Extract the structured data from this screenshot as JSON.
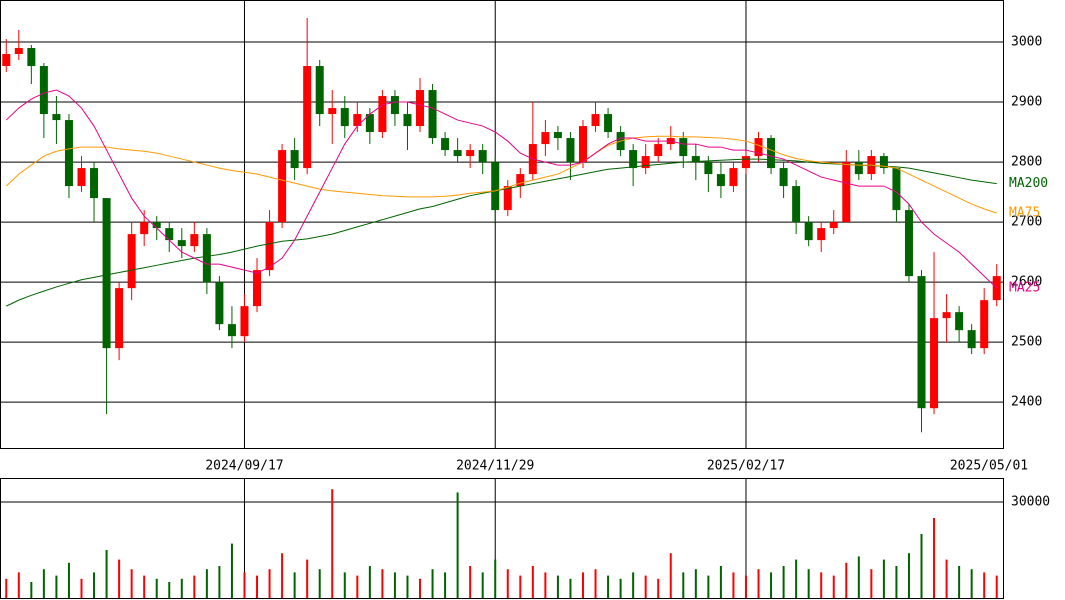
{
  "chart_data": [
    {
      "type": "candlestick",
      "categories": [
        null,
        null,
        null,
        null,
        null,
        null,
        null,
        null,
        null,
        null,
        null,
        null,
        null,
        null,
        null,
        null,
        null,
        null,
        null,
        "2024/09/17",
        null,
        null,
        null,
        null,
        null,
        null,
        null,
        null,
        null,
        null,
        null,
        null,
        null,
        null,
        null,
        null,
        null,
        null,
        null,
        "2024/11/29",
        null,
        null,
        null,
        null,
        null,
        null,
        null,
        null,
        null,
        null,
        null,
        null,
        null,
        null,
        null,
        null,
        null,
        null,
        null,
        "2025/02/17",
        null,
        null,
        null,
        null,
        null,
        null,
        null,
        null,
        null,
        null,
        null,
        null,
        null,
        null,
        null,
        null,
        null,
        null,
        null,
        "2025/05/01"
      ],
      "open": [
        2960,
        2980,
        2990,
        2960,
        2880,
        2870,
        2760,
        2790,
        2740,
        2490,
        2590,
        2680,
        2700,
        2690,
        2670,
        2660,
        2680,
        2600,
        2530,
        2510,
        2560,
        2620,
        2700,
        2820,
        2790,
        2960,
        2880,
        2890,
        2860,
        2880,
        2850,
        2910,
        2880,
        2860,
        2920,
        2840,
        2820,
        2810,
        2820,
        2800,
        2720,
        2760,
        2780,
        2830,
        2850,
        2840,
        2800,
        2860,
        2880,
        2850,
        2820,
        2790,
        2810,
        2830,
        2840,
        2810,
        2800,
        2780,
        2760,
        2790,
        2810,
        2840,
        2790,
        2760,
        2700,
        2670,
        2690,
        2700,
        2800,
        2780,
        2810,
        2790,
        2720,
        2610,
        2390,
        2540,
        2550,
        2520,
        2490,
        2570
      ],
      "high": [
        3005,
        3020,
        2995,
        2965,
        2910,
        2880,
        2810,
        2800,
        2740,
        2600,
        2700,
        2720,
        2710,
        2700,
        2690,
        2700,
        2690,
        2610,
        2560,
        2580,
        2640,
        2720,
        2830,
        2840,
        3040,
        2970,
        2920,
        2910,
        2900,
        2890,
        2920,
        2920,
        2900,
        2940,
        2930,
        2850,
        2840,
        2830,
        2830,
        2810,
        2770,
        2790,
        2900,
        2870,
        2860,
        2850,
        2870,
        2900,
        2890,
        2860,
        2830,
        2830,
        2840,
        2860,
        2850,
        2830,
        2810,
        2800,
        2800,
        2820,
        2850,
        2845,
        2800,
        2770,
        2710,
        2700,
        2720,
        2820,
        2820,
        2820,
        2815,
        2790,
        2730,
        2620,
        2650,
        2580,
        2560,
        2530,
        2590,
        2630
      ],
      "low": [
        2950,
        2970,
        2930,
        2840,
        2830,
        2740,
        2750,
        2700,
        2380,
        2470,
        2570,
        2660,
        2670,
        2650,
        2640,
        2650,
        2580,
        2520,
        2490,
        2500,
        2550,
        2610,
        2690,
        2770,
        2780,
        2860,
        2830,
        2840,
        2850,
        2830,
        2840,
        2860,
        2820,
        2850,
        2830,
        2810,
        2800,
        2790,
        2780,
        2700,
        2710,
        2740,
        2770,
        2810,
        2820,
        2770,
        2790,
        2850,
        2840,
        2810,
        2760,
        2780,
        2800,
        2820,
        2790,
        2770,
        2750,
        2740,
        2750,
        2780,
        2800,
        2780,
        2740,
        2680,
        2660,
        2650,
        2680,
        2700,
        2770,
        2770,
        2780,
        2700,
        2600,
        2350,
        2380,
        2500,
        2500,
        2480,
        2480,
        2560
      ],
      "close": [
        2980,
        2990,
        2960,
        2880,
        2870,
        2760,
        2790,
        2740,
        2490,
        2590,
        2680,
        2700,
        2690,
        2670,
        2660,
        2680,
        2600,
        2530,
        2510,
        2560,
        2620,
        2700,
        2820,
        2790,
        2960,
        2880,
        2890,
        2860,
        2880,
        2850,
        2910,
        2880,
        2860,
        2920,
        2840,
        2820,
        2810,
        2820,
        2800,
        2720,
        2760,
        2780,
        2830,
        2850,
        2840,
        2800,
        2860,
        2880,
        2850,
        2820,
        2790,
        2810,
        2830,
        2840,
        2810,
        2800,
        2780,
        2760,
        2790,
        2810,
        2840,
        2790,
        2760,
        2700,
        2670,
        2690,
        2700,
        2800,
        2780,
        2810,
        2790,
        2720,
        2610,
        2390,
        2540,
        2550,
        2520,
        2490,
        2570,
        2610
      ],
      "up_color": "#ff0000",
      "down_color": "#006400",
      "series": [
        {
          "name": "MA200",
          "color": "#006400",
          "values": [
            2560,
            2570,
            2578,
            2585,
            2592,
            2598,
            2604,
            2608,
            2612,
            2616,
            2620,
            2624,
            2628,
            2632,
            2636,
            2640,
            2643,
            2646,
            2650,
            2655,
            2660,
            2664,
            2668,
            2670,
            2672,
            2676,
            2680,
            2686,
            2692,
            2698,
            2704,
            2710,
            2716,
            2722,
            2726,
            2732,
            2738,
            2744,
            2748,
            2752,
            2756,
            2760,
            2764,
            2768,
            2772,
            2776,
            2780,
            2784,
            2788,
            2790,
            2792,
            2794,
            2796,
            2798,
            2800,
            2801,
            2802,
            2803,
            2804,
            2805,
            2805,
            2804,
            2803,
            2802,
            2800,
            2798,
            2797,
            2796,
            2795,
            2794,
            2793,
            2792,
            2790,
            2786,
            2782,
            2778,
            2774,
            2770,
            2767,
            2764
          ]
        },
        {
          "name": "MA75",
          "color": "#ff9900",
          "values": [
            2760,
            2780,
            2795,
            2810,
            2818,
            2822,
            2825,
            2825,
            2825,
            2822,
            2820,
            2818,
            2815,
            2810,
            2805,
            2800,
            2795,
            2790,
            2786,
            2783,
            2780,
            2775,
            2770,
            2765,
            2760,
            2755,
            2752,
            2750,
            2748,
            2746,
            2744,
            2743,
            2742,
            2742,
            2742,
            2743,
            2745,
            2748,
            2750,
            2752,
            2758,
            2765,
            2770,
            2775,
            2780,
            2790,
            2800,
            2815,
            2828,
            2835,
            2840,
            2842,
            2843,
            2843,
            2842,
            2842,
            2841,
            2840,
            2838,
            2835,
            2828,
            2820,
            2812,
            2806,
            2802,
            2800,
            2798,
            2796,
            2795,
            2795,
            2793,
            2790,
            2780,
            2770,
            2760,
            2750,
            2740,
            2730,
            2722,
            2715
          ]
        },
        {
          "name": "MA25",
          "color": "#e6008a",
          "values": [
            2870,
            2890,
            2905,
            2915,
            2920,
            2910,
            2890,
            2860,
            2820,
            2780,
            2740,
            2710,
            2690,
            2670,
            2650,
            2640,
            2630,
            2630,
            2625,
            2620,
            2615,
            2625,
            2640,
            2670,
            2710,
            2750,
            2790,
            2830,
            2860,
            2880,
            2895,
            2900,
            2900,
            2895,
            2890,
            2880,
            2870,
            2865,
            2860,
            2850,
            2835,
            2815,
            2805,
            2800,
            2795,
            2795,
            2800,
            2815,
            2830,
            2840,
            2840,
            2835,
            2835,
            2835,
            2830,
            2830,
            2825,
            2825,
            2820,
            2820,
            2815,
            2810,
            2805,
            2795,
            2785,
            2775,
            2770,
            2765,
            2760,
            2760,
            2760,
            2750,
            2730,
            2700,
            2680,
            2665,
            2650,
            2630,
            2610,
            2590
          ]
        }
      ],
      "ylim": [
        2322,
        3070
      ],
      "yticks": [
        2400,
        2500,
        2600,
        2700,
        2800,
        2900,
        3000
      ],
      "grid": true
    },
    {
      "type": "bar",
      "values": [
        6000,
        8000,
        5000,
        9000,
        7000,
        11000,
        6000,
        8000,
        15000,
        12000,
        9000,
        7000,
        6000,
        5000,
        6000,
        7000,
        9000,
        10000,
        17000,
        8000,
        7000,
        9000,
        14000,
        8000,
        12000,
        9000,
        34000,
        8000,
        7000,
        10000,
        9000,
        8000,
        7000,
        6000,
        9000,
        8000,
        33000,
        10000,
        8000,
        12000,
        9000,
        7000,
        10000,
        8000,
        7000,
        6000,
        8000,
        9000,
        7000,
        6000,
        8000,
        7000,
        6000,
        14000,
        8000,
        9000,
        7000,
        10000,
        8000,
        7000,
        9000,
        8000,
        10000,
        12000,
        9000,
        8000,
        7000,
        11000,
        13000,
        9000,
        12000,
        10000,
        14000,
        20000,
        25000,
        12000,
        10000,
        9000,
        8000,
        7000
      ],
      "ylim": [
        0,
        37500
      ],
      "yticks": [
        30000
      ],
      "grid": true
    }
  ]
}
